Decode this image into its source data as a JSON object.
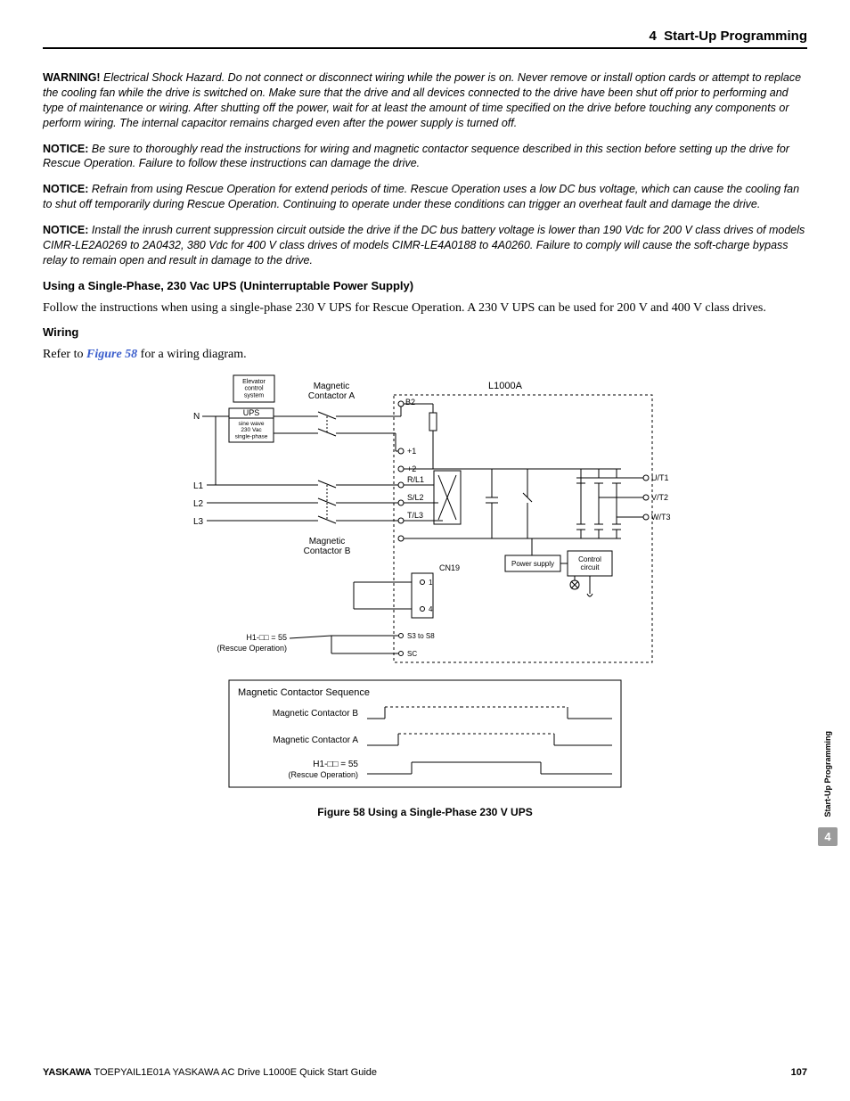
{
  "header": {
    "section_number": "4",
    "section_title": "Start-Up Programming"
  },
  "paragraphs": {
    "warning_lead": "WARNING!",
    "warning_text": " Electrical Shock Hazard. Do not connect or disconnect wiring while the power is on. Never remove or install option cards or attempt to replace the cooling fan while the drive is switched on. Make sure that the drive and all devices connected to the drive have been shut off prior to performing and type of maintenance or wiring. After shutting off the power, wait for at least the amount of time specified on the drive before touching any components or perform wiring. The internal capacitor remains charged even after the power supply is turned off.",
    "notice1_lead": "NOTICE:",
    "notice1_text": " Be sure to thoroughly read the instructions for wiring and magnetic contactor sequence described in this section before setting up the drive for Rescue Operation. Failure to follow these instructions can damage the drive.",
    "notice2_lead": "NOTICE:",
    "notice2_text": " Refrain from using Rescue Operation for extend periods of time. Rescue Operation uses a low DC bus voltage, which can cause the cooling fan to shut off temporarily during Rescue Operation. Continuing to operate under these conditions can trigger an overheat fault and damage the drive.",
    "notice3_lead": "NOTICE:",
    "notice3_text": " Install the inrush current suppression circuit outside the drive if the DC bus battery voltage is lower than 190 Vdc for 200 V class drives of models CIMR-LE2A0269 to 2A0432, 380 Vdc for 400 V class drives of models CIMR-LE4A0188 to 4A0260. Failure to comply will cause the soft-charge bypass relay to remain open and result in damage to the drive.",
    "h_ups": "Using a Single-Phase, 230 Vac UPS (Uninterruptable Power Supply)",
    "body_ups": "Follow the instructions when using a single-phase 230 V UPS for Rescue Operation. A 230 V UPS can be used for 200 V and 400 V class drives.",
    "h_wiring": "Wiring",
    "body_wiring_a": "Refer to ",
    "body_wiring_ref": "Figure 58",
    "body_wiring_b": " for a wiring diagram."
  },
  "diagram": {
    "title": "L1000A",
    "labels": {
      "elevator": "Elevator\ncontrol\nsystem",
      "mag_a": "Magnetic\nContactor A",
      "mag_b": "Magnetic\nContactor B",
      "n": "N",
      "ups": "UPS",
      "ups_desc": "sine wave\n230 Vac\nsingle-phase",
      "l1": "L1",
      "l2": "L2",
      "l3": "L3",
      "b2": "B2",
      "plus1": "+1",
      "plus2": "+2",
      "rl1": "R/L1",
      "sl2": "S/L2",
      "tl3": "T/L3",
      "minus": "−",
      "ut1": "U/T1",
      "vt2": "V/T2",
      "wt3": "W/T3",
      "cn19": "CN19",
      "cn19_1": "1",
      "cn19_4": "4",
      "power_supply": "Power supply",
      "control_circuit": "Control\ncircuit",
      "s3s8": "S3 to S8",
      "sc": "SC",
      "h1_label": "H1-□□ = 55",
      "rescue": "(Rescue Operation)"
    },
    "sequence": {
      "title": "Magnetic Contactor Sequence",
      "row_b": "Magnetic Contactor B",
      "row_a": "Magnetic Contactor A",
      "row_h1": "H1-□□ = 55",
      "row_rescue": "(Rescue Operation)"
    },
    "caption": "Figure 58  Using a Single-Phase 230 V UPS",
    "colors": {
      "stroke": "#000000",
      "dash": "#000000",
      "bg": "#ffffff"
    }
  },
  "side_tab": {
    "label": "Start-Up Programming",
    "number": "4"
  },
  "footer": {
    "brand": "YASKAWA",
    "doc": " TOEPYAIL1E01A YASKAWA AC Drive L1000E Quick Start Guide",
    "page": "107"
  }
}
